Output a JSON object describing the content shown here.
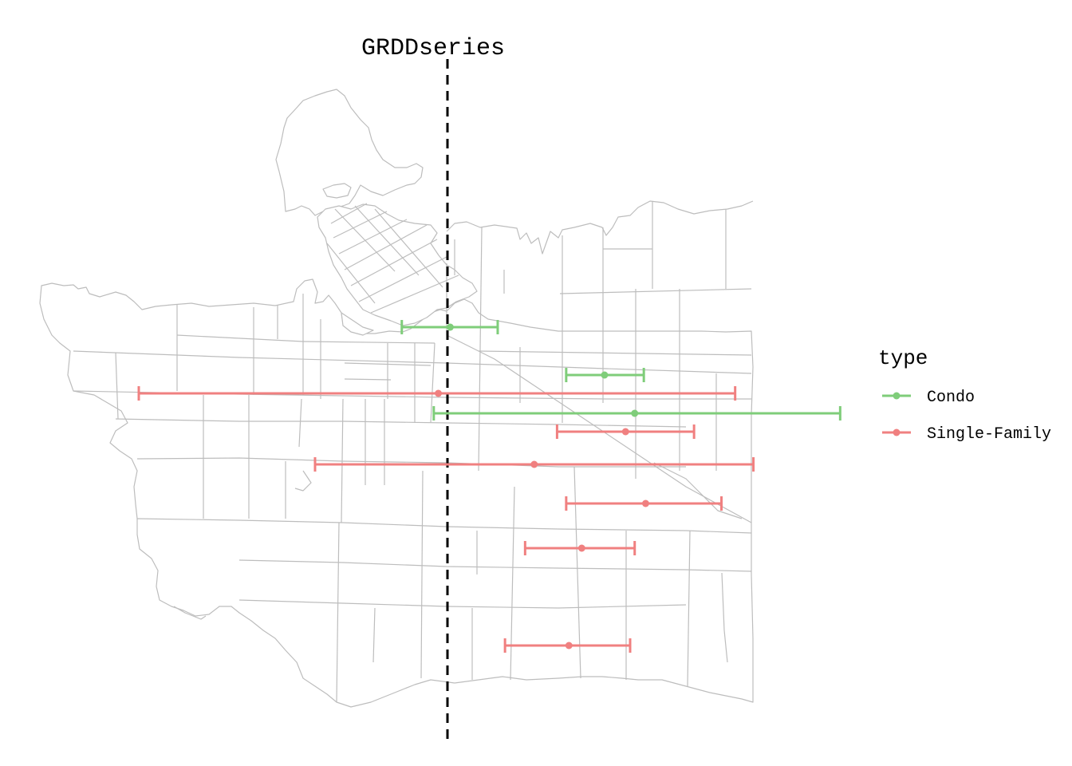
{
  "title": "GRDDseries",
  "legend": {
    "title": "type",
    "items": [
      {
        "label": "Condo",
        "color": "#7fcd7a"
      },
      {
        "label": "Single-Family",
        "color": "#f08080"
      }
    ]
  },
  "colors": {
    "map_outline": "#bdbdbd",
    "reference_line": "#000000",
    "background": "#ffffff"
  },
  "chart_data": {
    "type": "scatter",
    "title": "GRDDseries",
    "xlabel": "",
    "ylabel": "",
    "reference_line": {
      "style": "dashed",
      "orientation": "vertical",
      "x": 0
    },
    "legend_position": "right",
    "grid": false,
    "series": [
      {
        "name": "Condo",
        "points": [
          {
            "center": 0.3,
            "lower": -5.0,
            "upper": 5.5
          },
          {
            "center": 17.2,
            "lower": 13.0,
            "upper": 21.5
          },
          {
            "center": 20.5,
            "lower": -1.5,
            "upper": 43.0
          }
        ]
      },
      {
        "name": "Single-Family",
        "points": [
          {
            "center": -1.0,
            "lower": -33.8,
            "upper": 31.5
          },
          {
            "center": 19.5,
            "lower": 12.0,
            "upper": 27.0
          },
          {
            "center": 9.5,
            "lower": -14.5,
            "upper": 33.5
          },
          {
            "center": 21.7,
            "lower": 13.0,
            "upper": 30.0
          },
          {
            "center": 14.7,
            "lower": 8.5,
            "upper": 20.5
          },
          {
            "center": 13.3,
            "lower": 6.3,
            "upper": 20.0
          }
        ]
      }
    ]
  }
}
